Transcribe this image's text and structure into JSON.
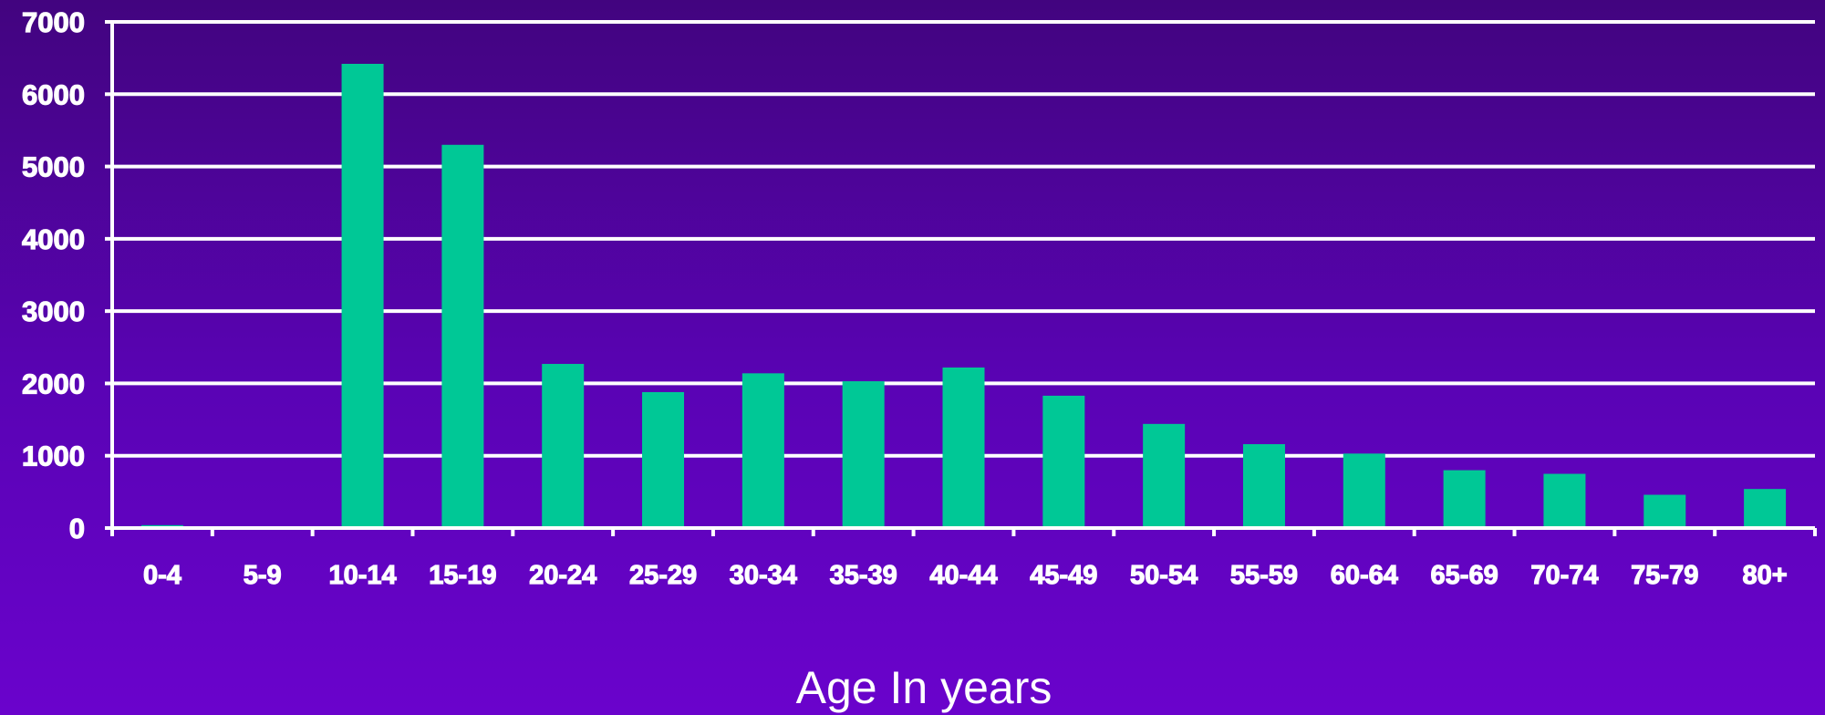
{
  "chart_data": {
    "type": "bar",
    "title": "",
    "xlabel": "Age In years",
    "ylabel": "",
    "categories": [
      "0-4",
      "5-9",
      "10-14",
      "15-19",
      "20-24",
      "25-29",
      "30-34",
      "35-39",
      "40-44",
      "45-49",
      "50-54",
      "55-59",
      "60-64",
      "65-69",
      "70-74",
      "75-79",
      "80+"
    ],
    "values": [
      40,
      0,
      6420,
      5300,
      2270,
      1880,
      2140,
      2030,
      2220,
      1830,
      1440,
      1160,
      1030,
      800,
      750,
      460,
      540
    ],
    "ylim": [
      0,
      7000
    ],
    "yticks": [
      0,
      1000,
      2000,
      3000,
      4000,
      5000,
      6000,
      7000
    ],
    "grid": true,
    "legend": "none",
    "colors": {
      "bar": "#00c896",
      "grid": "#ffffff",
      "axis": "#ffffff",
      "text": "#ffffff",
      "background_top": "#42047f",
      "background_bottom": "#6a03cc"
    }
  }
}
